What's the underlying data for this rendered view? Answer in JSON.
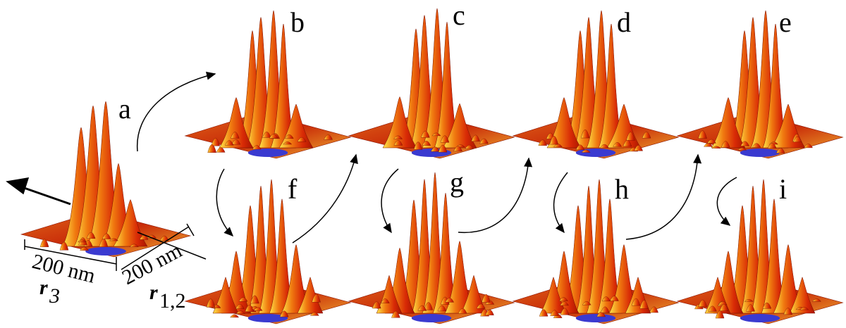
{
  "panels": [
    {
      "label": "a"
    },
    {
      "label": "b"
    },
    {
      "label": "c"
    },
    {
      "label": "d"
    },
    {
      "label": "e"
    },
    {
      "label": "f"
    },
    {
      "label": "g"
    },
    {
      "label": "h"
    },
    {
      "label": "i"
    }
  ],
  "scale": {
    "r3_length": "200 nm",
    "r3_symbol": "r",
    "r3_subscript": "3",
    "r12_length": "200 nm",
    "r12_symbol": "r",
    "r12_subscript": "1,2"
  }
}
